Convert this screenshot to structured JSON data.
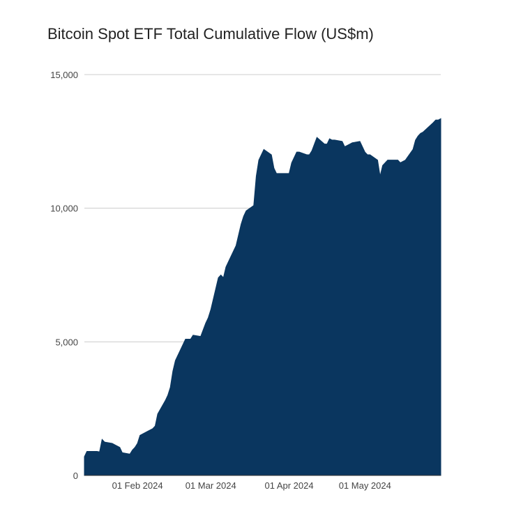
{
  "chart_data": {
    "type": "area",
    "title": "Bitcoin Spot ETF Total Cumulative Flow (US$m)",
    "xlabel": "",
    "ylabel": "",
    "ylim": [
      0,
      15000
    ],
    "yticks": [
      0,
      5000,
      10000,
      15000
    ],
    "ytick_labels": [
      "0",
      "5,000",
      "10,000",
      "15,000"
    ],
    "xlim": [
      "2024-01-11",
      "2024-05-31"
    ],
    "xticks": [
      "2024-02-01",
      "2024-03-01",
      "2024-04-01",
      "2024-05-01"
    ],
    "xtick_labels": [
      "01 Feb 2024",
      "01 Mar 2024",
      "01 Apr 2024",
      "01 May 2024"
    ],
    "grid": "horizontal",
    "legend": "none",
    "color": "#0a365f",
    "series": [
      {
        "x": [
          "2024-01-11",
          "2024-01-12",
          "2024-01-16",
          "2024-01-17",
          "2024-01-18",
          "2024-01-19",
          "2024-01-22",
          "2024-01-23",
          "2024-01-24",
          "2024-01-25",
          "2024-01-26",
          "2024-01-29",
          "2024-01-30",
          "2024-01-31",
          "2024-02-01",
          "2024-02-02",
          "2024-02-05",
          "2024-02-06",
          "2024-02-07",
          "2024-02-08",
          "2024-02-09",
          "2024-02-12",
          "2024-02-13",
          "2024-02-14",
          "2024-02-15",
          "2024-02-16",
          "2024-02-20",
          "2024-02-21",
          "2024-02-22",
          "2024-02-23",
          "2024-02-26",
          "2024-02-27",
          "2024-02-28",
          "2024-02-29",
          "2024-03-01",
          "2024-03-04",
          "2024-03-05",
          "2024-03-06",
          "2024-03-07",
          "2024-03-08",
          "2024-03-11",
          "2024-03-12",
          "2024-03-13",
          "2024-03-14",
          "2024-03-15",
          "2024-03-18",
          "2024-03-19",
          "2024-03-20",
          "2024-03-21",
          "2024-03-22",
          "2024-03-25",
          "2024-03-26",
          "2024-03-27",
          "2024-03-28",
          "2024-04-01",
          "2024-04-02",
          "2024-04-03",
          "2024-04-04",
          "2024-04-05",
          "2024-04-08",
          "2024-04-09",
          "2024-04-10",
          "2024-04-11",
          "2024-04-12",
          "2024-04-15",
          "2024-04-16",
          "2024-04-17",
          "2024-04-18",
          "2024-04-19",
          "2024-04-22",
          "2024-04-23",
          "2024-04-24",
          "2024-04-25",
          "2024-04-26",
          "2024-04-29",
          "2024-04-30",
          "2024-05-01",
          "2024-05-02",
          "2024-05-03",
          "2024-05-06",
          "2024-05-07",
          "2024-05-08",
          "2024-05-09",
          "2024-05-10",
          "2024-05-13",
          "2024-05-14",
          "2024-05-15",
          "2024-05-16",
          "2024-05-17",
          "2024-05-20",
          "2024-05-21",
          "2024-05-22",
          "2024-05-23",
          "2024-05-24",
          "2024-05-28",
          "2024-05-29",
          "2024-05-30",
          "2024-05-31"
        ],
        "values": [
          700,
          900,
          900,
          880,
          1350,
          1250,
          1200,
          1150,
          1100,
          1050,
          850,
          800,
          950,
          1050,
          1200,
          1500,
          1650,
          1700,
          1750,
          1850,
          2300,
          2800,
          3000,
          3300,
          3900,
          4300,
          5100,
          5100,
          5100,
          5250,
          5200,
          5450,
          5700,
          5900,
          6200,
          7400,
          7500,
          7400,
          7800,
          8000,
          8600,
          9000,
          9400,
          9700,
          9900,
          10100,
          11200,
          11800,
          12000,
          12200,
          12000,
          11500,
          11300,
          11300,
          11300,
          11700,
          11900,
          12100,
          12100,
          12000,
          12000,
          12150,
          12400,
          12650,
          12400,
          12400,
          12600,
          12550,
          12550,
          12500,
          12300,
          12350,
          12400,
          12450,
          12500,
          12300,
          12100,
          12000,
          12000,
          11800,
          11200,
          11600,
          11700,
          11800,
          11800,
          11800,
          11700,
          11750,
          11800,
          12200,
          12550,
          12700,
          12800,
          12850,
          13200,
          13300,
          13300,
          13350
        ]
      }
    ]
  }
}
